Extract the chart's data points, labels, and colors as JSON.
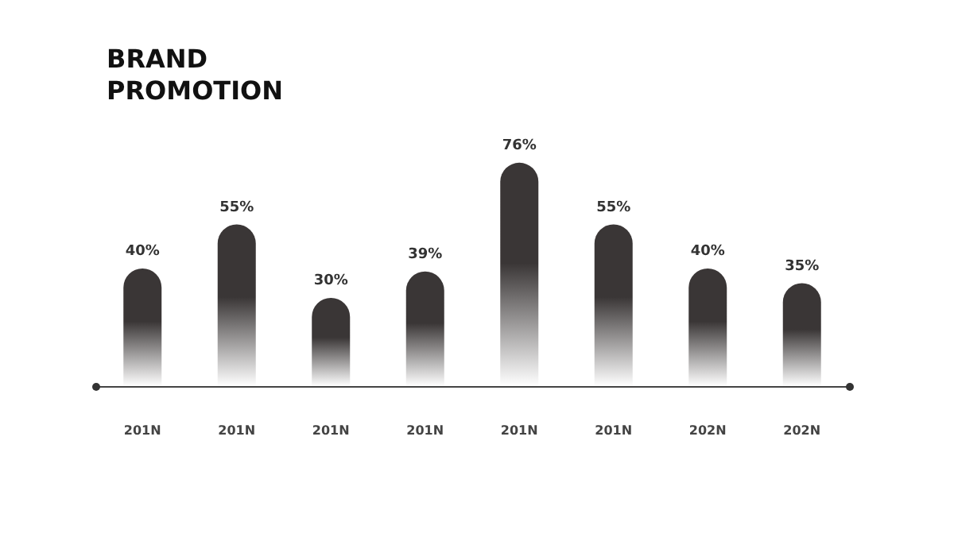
{
  "chart_data": {
    "type": "bar",
    "title": "BRAND PROMOTION",
    "categories": [
      "201N",
      "201N",
      "201N",
      "201N",
      "201N",
      "201N",
      "202N",
      "202N"
    ],
    "values": [
      40,
      55,
      30,
      39,
      76,
      55,
      40,
      35
    ],
    "value_labels": [
      "40%",
      "55%",
      "30%",
      "39%",
      "76%",
      "55%",
      "40%",
      "35%"
    ],
    "color": "#3a3636"
  }
}
